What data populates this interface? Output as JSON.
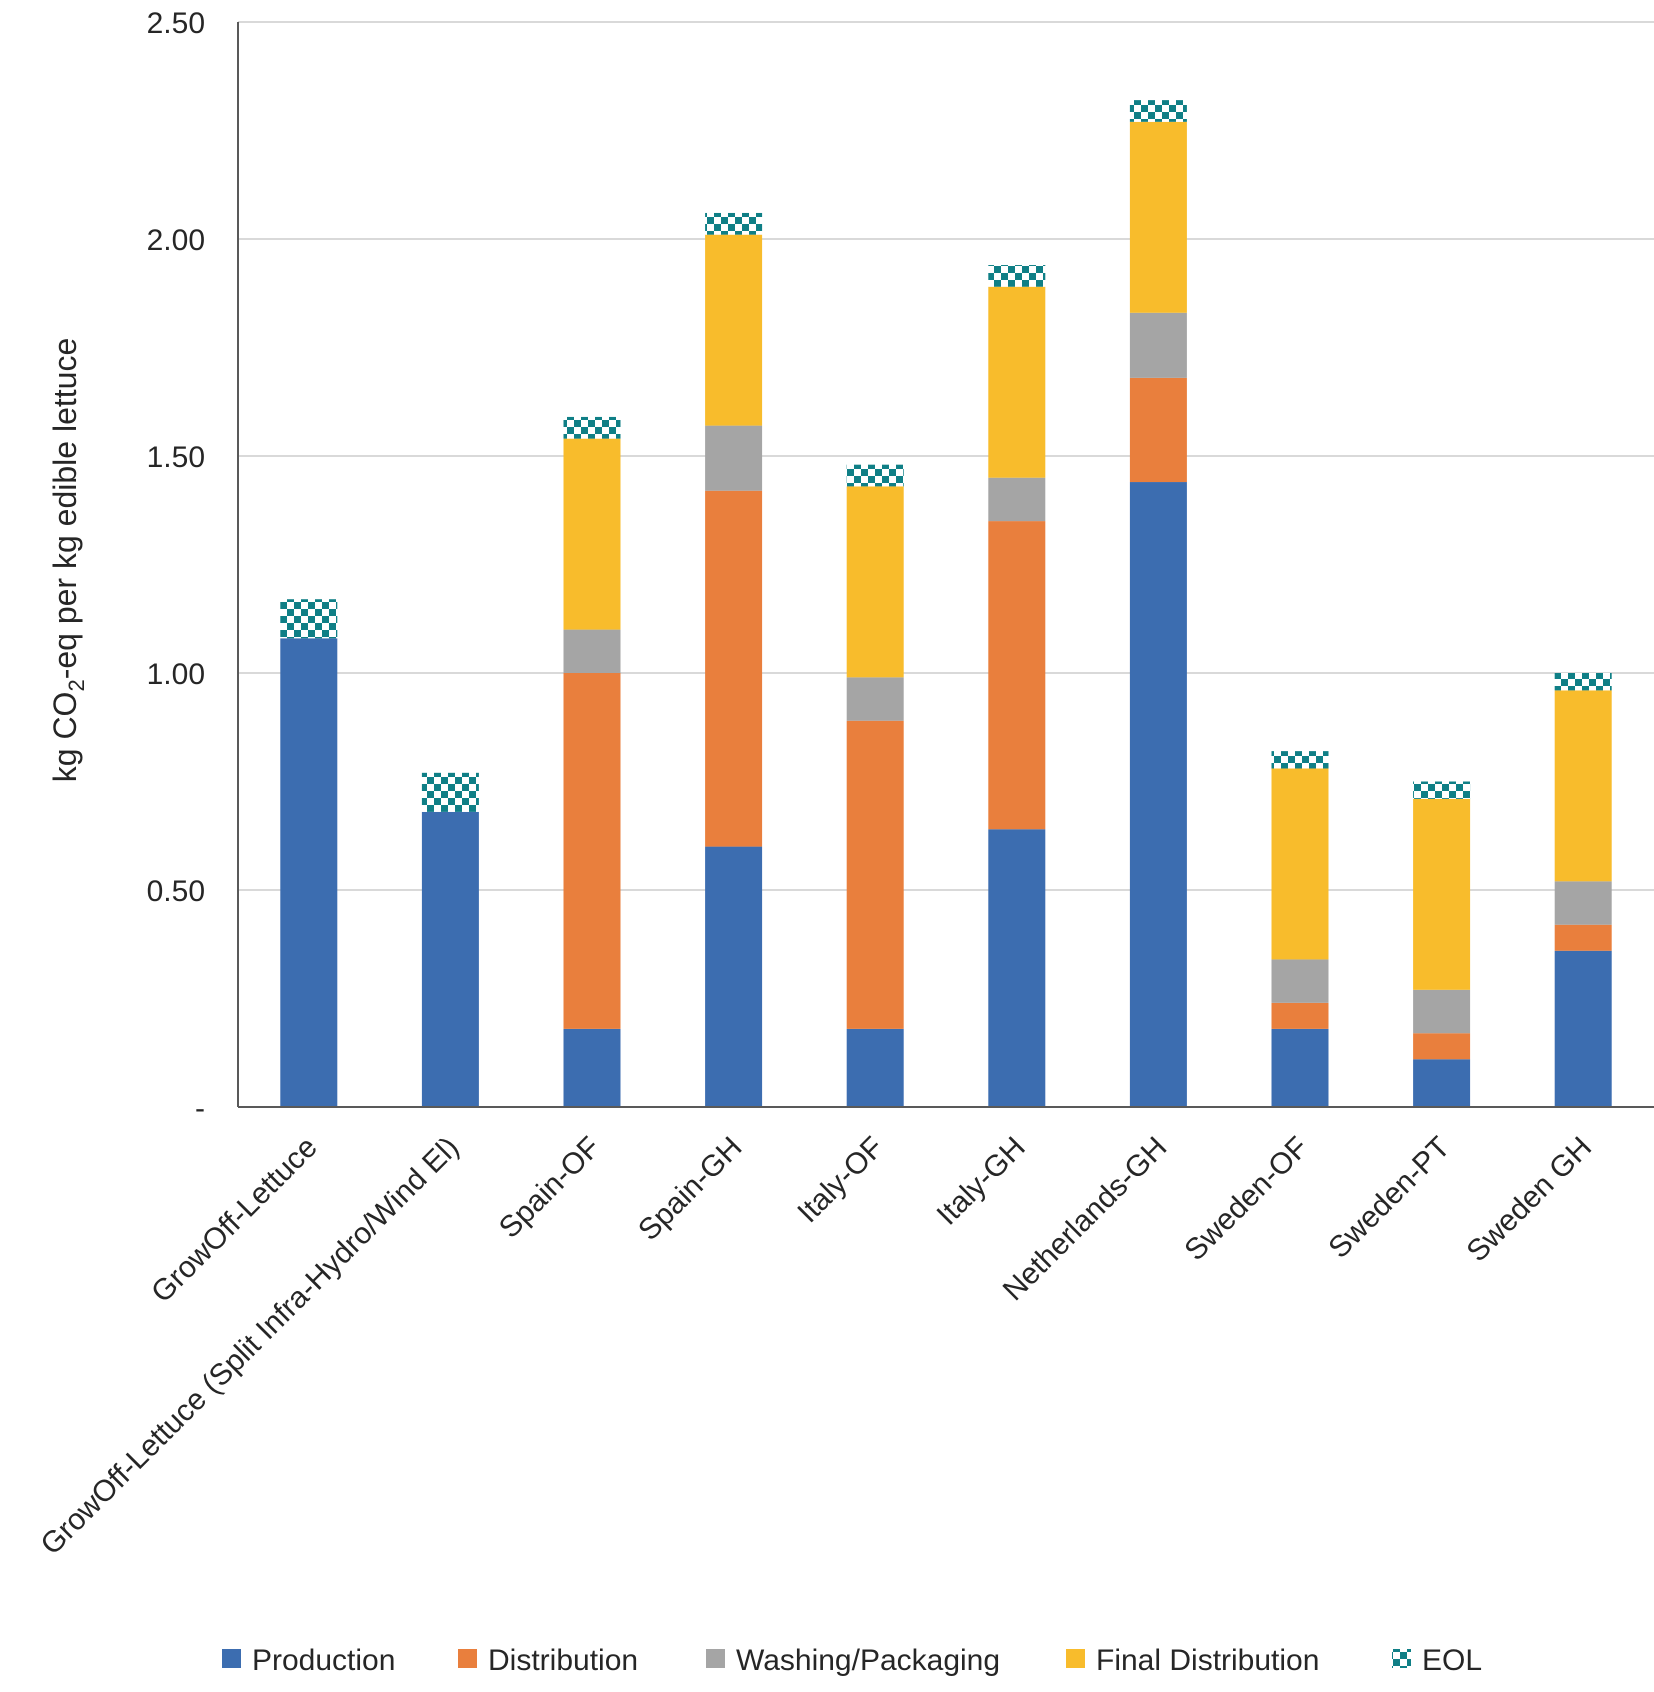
{
  "chart_data": {
    "type": "bar",
    "stacked": true,
    "title": "",
    "xlabel": "",
    "ylabel": {
      "prefix": "kg CO",
      "subscript": "2",
      "suffix": "-eq per kg edible lettuce"
    },
    "ylim": [
      0,
      2.5
    ],
    "yticks": [
      0,
      0.5,
      1.0,
      1.5,
      2.0,
      2.5
    ],
    "ytick_labels": [
      "-",
      "0.50",
      "1.00",
      "1.50",
      "2.00",
      "2.50"
    ],
    "grid": true,
    "legend_position": "bottom",
    "categories": [
      "GrowOff-Lettuce",
      "GrowOff-Lettuce (Split Infra-Hydro/Wind El)",
      "Spain-OF",
      "Spain-GH",
      "Italy-OF",
      "Italy-GH",
      "Netherlands-GH",
      "Sweden-OF",
      "Sweden-PT",
      "Sweden GH"
    ],
    "series": [
      {
        "name": "Production",
        "color": "#3c6db0",
        "pattern": "solid",
        "values": [
          1.08,
          0.68,
          0.18,
          0.6,
          0.18,
          0.64,
          1.44,
          0.18,
          0.11,
          0.36
        ]
      },
      {
        "name": "Distribution",
        "color": "#e97f3d",
        "pattern": "solid",
        "values": [
          0,
          0,
          0.82,
          0.82,
          0.71,
          0.71,
          0.24,
          0.06,
          0.06,
          0.06
        ]
      },
      {
        "name": "Washing/Packaging",
        "color": "#a5a5a5",
        "pattern": "solid",
        "values": [
          0,
          0,
          0.1,
          0.15,
          0.1,
          0.1,
          0.15,
          0.1,
          0.1,
          0.1
        ]
      },
      {
        "name": "Final Distribution",
        "color": "#f8bc2c",
        "pattern": "solid",
        "values": [
          0,
          0,
          0.44,
          0.44,
          0.44,
          0.44,
          0.44,
          0.44,
          0.44,
          0.44
        ]
      },
      {
        "name": "EOL",
        "color": "#0f7f86",
        "pattern": "checker",
        "values": [
          0.09,
          0.09,
          0.05,
          0.05,
          0.05,
          0.05,
          0.05,
          0.04,
          0.04,
          0.04
        ]
      }
    ]
  }
}
